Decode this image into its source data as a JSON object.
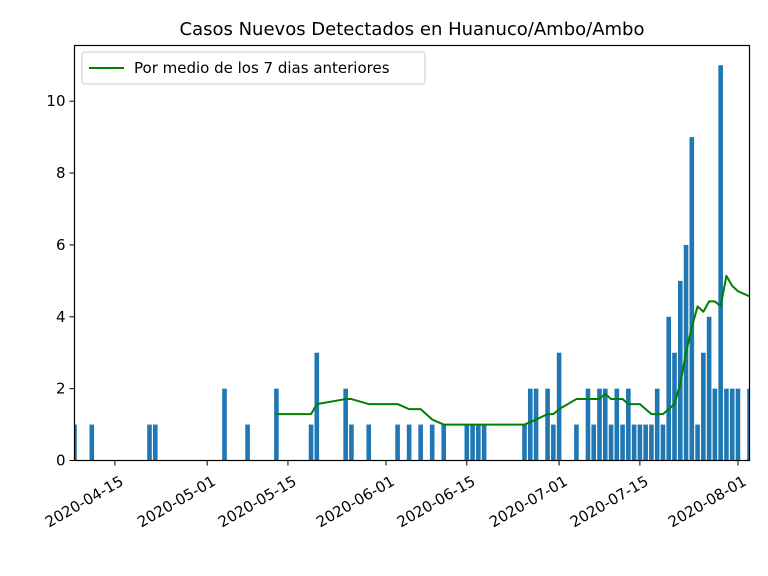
{
  "chart_data": {
    "type": "bar",
    "title": "Casos Nuevos Detectados en Huanuco/Ambo/Ambo",
    "xlabel": "",
    "ylabel": "",
    "ylim": [
      0,
      11.55
    ],
    "xlim": [
      "2020-04-08",
      "2020-08-03"
    ],
    "grid": false,
    "legend_position": "top-left",
    "x_ticks": [
      "2020-04-15",
      "2020-05-01",
      "2020-05-15",
      "2020-06-01",
      "2020-06-15",
      "2020-07-01",
      "2020-07-15",
      "2020-08-01"
    ],
    "y_ticks": [
      0,
      2,
      4,
      6,
      8,
      10
    ],
    "colors": {
      "bars": "#1f77b4",
      "line": "#008000"
    },
    "bars": {
      "dates": [
        "2020-04-08",
        "2020-04-11",
        "2020-04-21",
        "2020-04-22",
        "2020-05-04",
        "2020-05-08",
        "2020-05-13",
        "2020-05-19",
        "2020-05-20",
        "2020-05-25",
        "2020-05-26",
        "2020-05-29",
        "2020-06-03",
        "2020-06-05",
        "2020-06-07",
        "2020-06-09",
        "2020-06-11",
        "2020-06-15",
        "2020-06-16",
        "2020-06-17",
        "2020-06-18",
        "2020-06-25",
        "2020-06-26",
        "2020-06-27",
        "2020-06-29",
        "2020-06-30",
        "2020-07-01",
        "2020-07-04",
        "2020-07-06",
        "2020-07-07",
        "2020-07-08",
        "2020-07-09",
        "2020-07-10",
        "2020-07-11",
        "2020-07-12",
        "2020-07-13",
        "2020-07-14",
        "2020-07-15",
        "2020-07-16",
        "2020-07-17",
        "2020-07-18",
        "2020-07-19",
        "2020-07-20",
        "2020-07-21",
        "2020-07-22",
        "2020-07-23",
        "2020-07-24",
        "2020-07-25",
        "2020-07-26",
        "2020-07-27",
        "2020-07-28",
        "2020-07-29",
        "2020-07-30",
        "2020-07-31",
        "2020-08-01",
        "2020-08-03"
      ],
      "values": [
        1,
        1,
        1,
        1,
        2,
        1,
        2,
        1,
        3,
        2,
        1,
        1,
        1,
        1,
        1,
        1,
        1,
        1,
        1,
        1,
        1,
        1,
        2,
        2,
        2,
        1,
        3,
        1,
        2,
        1,
        2,
        2,
        1,
        2,
        1,
        2,
        1,
        1,
        1,
        1,
        2,
        1,
        4,
        3,
        5,
        6,
        9,
        1,
        3,
        4,
        2,
        11,
        2,
        2,
        2,
        2
      ]
    },
    "series": [
      {
        "name": "Por medio de los 7 dias anteriores",
        "x": [
          "2020-05-13",
          "2020-05-19",
          "2020-05-20",
          "2020-05-25",
          "2020-05-26",
          "2020-05-29",
          "2020-06-03",
          "2020-06-05",
          "2020-06-07",
          "2020-06-09",
          "2020-06-11",
          "2020-06-15",
          "2020-06-25",
          "2020-06-27",
          "2020-06-29",
          "2020-06-30",
          "2020-07-01",
          "2020-07-04",
          "2020-07-06",
          "2020-07-07",
          "2020-07-08",
          "2020-07-09",
          "2020-07-10",
          "2020-07-11",
          "2020-07-12",
          "2020-07-13",
          "2020-07-14",
          "2020-07-15",
          "2020-07-17",
          "2020-07-19",
          "2020-07-20",
          "2020-07-21",
          "2020-07-22",
          "2020-07-23",
          "2020-07-24",
          "2020-07-25",
          "2020-07-26",
          "2020-07-27",
          "2020-07-28",
          "2020-07-29",
          "2020-07-30",
          "2020-07-31",
          "2020-08-01",
          "2020-08-03"
        ],
        "values": [
          1.29,
          1.29,
          1.57,
          1.71,
          1.71,
          1.57,
          1.57,
          1.43,
          1.43,
          1.14,
          1.0,
          1.0,
          1.0,
          1.14,
          1.29,
          1.29,
          1.43,
          1.71,
          1.71,
          1.71,
          1.71,
          1.86,
          1.71,
          1.71,
          1.71,
          1.57,
          1.57,
          1.57,
          1.29,
          1.29,
          1.43,
          1.57,
          2.14,
          3.0,
          3.71,
          4.29,
          4.14,
          4.43,
          4.43,
          4.29,
          5.14,
          4.86,
          4.71,
          4.57
        ]
      }
    ]
  }
}
